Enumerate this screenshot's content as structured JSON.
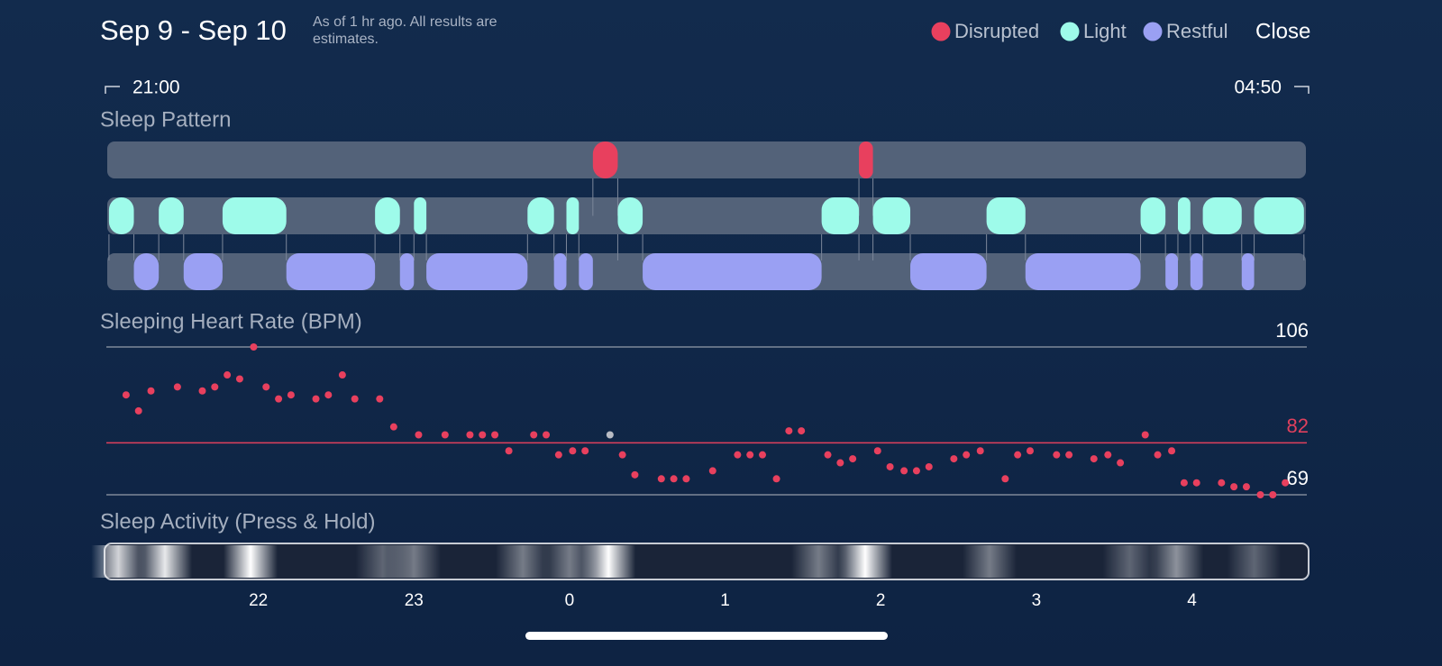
{
  "header": {
    "title": "Sep 9 - Sep 10",
    "subtitle": "As of 1 hr ago. All results are estimates.",
    "close": "Close"
  },
  "time_range": {
    "start": "21:00",
    "end": "04:50"
  },
  "chart_data": [
    {
      "type": "timeline",
      "title": "Sleep Pattern",
      "xlim": [
        -3,
        4.75
      ],
      "series": [
        {
          "name": "Disrupted",
          "color": "#e8405e",
          "segments": [
            [
              0.15,
              0.31
            ],
            [
              1.86,
              1.95
            ]
          ]
        },
        {
          "name": "Light",
          "color": "#9efbea",
          "segments": [
            [
              -2.96,
              -2.8
            ],
            [
              -2.64,
              -2.48
            ],
            [
              -2.23,
              -1.82
            ],
            [
              -1.25,
              -1.09
            ],
            [
              -1.0,
              -0.92
            ],
            [
              -0.27,
              -0.1
            ],
            [
              -0.02,
              0.06
            ],
            [
              0.31,
              0.47
            ],
            [
              1.62,
              1.86
            ],
            [
              1.95,
              2.19
            ],
            [
              2.68,
              2.93
            ],
            [
              3.67,
              3.83
            ],
            [
              3.91,
              3.99
            ],
            [
              4.07,
              4.32
            ],
            [
              4.4,
              4.72
            ]
          ]
        },
        {
          "name": "Restful",
          "color": "#9aa0f3",
          "segments": [
            [
              -2.8,
              -2.64
            ],
            [
              -2.48,
              -2.23
            ],
            [
              -1.82,
              -1.25
            ],
            [
              -1.09,
              -1.0
            ],
            [
              -0.92,
              -0.27
            ],
            [
              -0.1,
              -0.02
            ],
            [
              0.06,
              0.15
            ],
            [
              0.47,
              1.62
            ],
            [
              2.19,
              2.68
            ],
            [
              2.93,
              3.67
            ],
            [
              3.83,
              3.91
            ],
            [
              3.99,
              4.07
            ],
            [
              4.32,
              4.4
            ]
          ]
        }
      ]
    },
    {
      "type": "scatter",
      "title": "Sleeping Heart Rate (BPM)",
      "xlim": [
        -3,
        4.75
      ],
      "ylim": [
        69,
        106
      ],
      "yticks": [
        69,
        106
      ],
      "average": 82,
      "average_color": "#e0405d",
      "series": [
        {
          "color": "#e8405e",
          "x": [
            -2.85,
            -2.77,
            -2.69,
            -2.52,
            -2.36,
            -2.28,
            -2.2,
            -2.12,
            -2.03,
            -1.95,
            -1.87,
            -1.79,
            -1.63,
            -1.55,
            -1.46,
            -1.38,
            -1.22,
            -1.13,
            -0.97,
            -0.8,
            -0.64,
            -0.56,
            -0.48,
            -0.39,
            -0.23,
            -0.15,
            -0.07,
            0.02,
            0.1,
            0.34,
            0.42,
            0.59,
            0.67,
            0.75,
            0.92,
            1.08,
            1.16,
            1.24,
            1.33,
            1.41,
            1.49,
            1.66,
            1.74,
            1.82,
            1.98,
            2.06,
            2.15,
            2.23,
            2.31,
            2.47,
            2.55,
            2.64,
            2.8,
            2.88,
            2.96,
            3.13,
            3.21,
            3.37,
            3.46,
            3.54,
            3.7,
            3.78,
            3.87,
            3.95,
            4.03,
            4.19,
            4.27,
            4.35,
            4.44,
            4.52,
            4.6
          ],
          "values": [
            94,
            90,
            95,
            96,
            95,
            96,
            99,
            98,
            106,
            96,
            93,
            94,
            93,
            94,
            99,
            93,
            93,
            86,
            84,
            84,
            84,
            84,
            84,
            80,
            84,
            84,
            79,
            80,
            80,
            79,
            74,
            73,
            73,
            73,
            75,
            79,
            79,
            79,
            73,
            85,
            85,
            79,
            77,
            78,
            80,
            76,
            75,
            75,
            76,
            78,
            79,
            80,
            73,
            79,
            80,
            79,
            79,
            78,
            79,
            77,
            84,
            79,
            80,
            72,
            72,
            72,
            71,
            71,
            69,
            69,
            72
          ]
        },
        {
          "color": "#b9bcc4",
          "x": [
            0.26
          ],
          "values": [
            84
          ]
        }
      ]
    },
    {
      "type": "strip",
      "title": "Sleep Activity (Press & Hold)",
      "xlim": [
        -3,
        4.75
      ],
      "x": [
        -2.9,
        -2.6,
        -2.05,
        -1.2,
        -1.0,
        -0.3,
        0.0,
        0.25,
        1.6,
        1.9,
        2.7,
        3.6,
        3.9,
        4.4
      ],
      "values": [
        0.8,
        0.9,
        1.0,
        0.3,
        0.4,
        0.4,
        0.4,
        1.0,
        0.4,
        1.0,
        0.4,
        0.3,
        0.5,
        0.3
      ],
      "xticks": [
        {
          "value": -2,
          "label": "22"
        },
        {
          "value": -1,
          "label": "23"
        },
        0,
        1,
        2,
        3,
        4
      ]
    }
  ]
}
